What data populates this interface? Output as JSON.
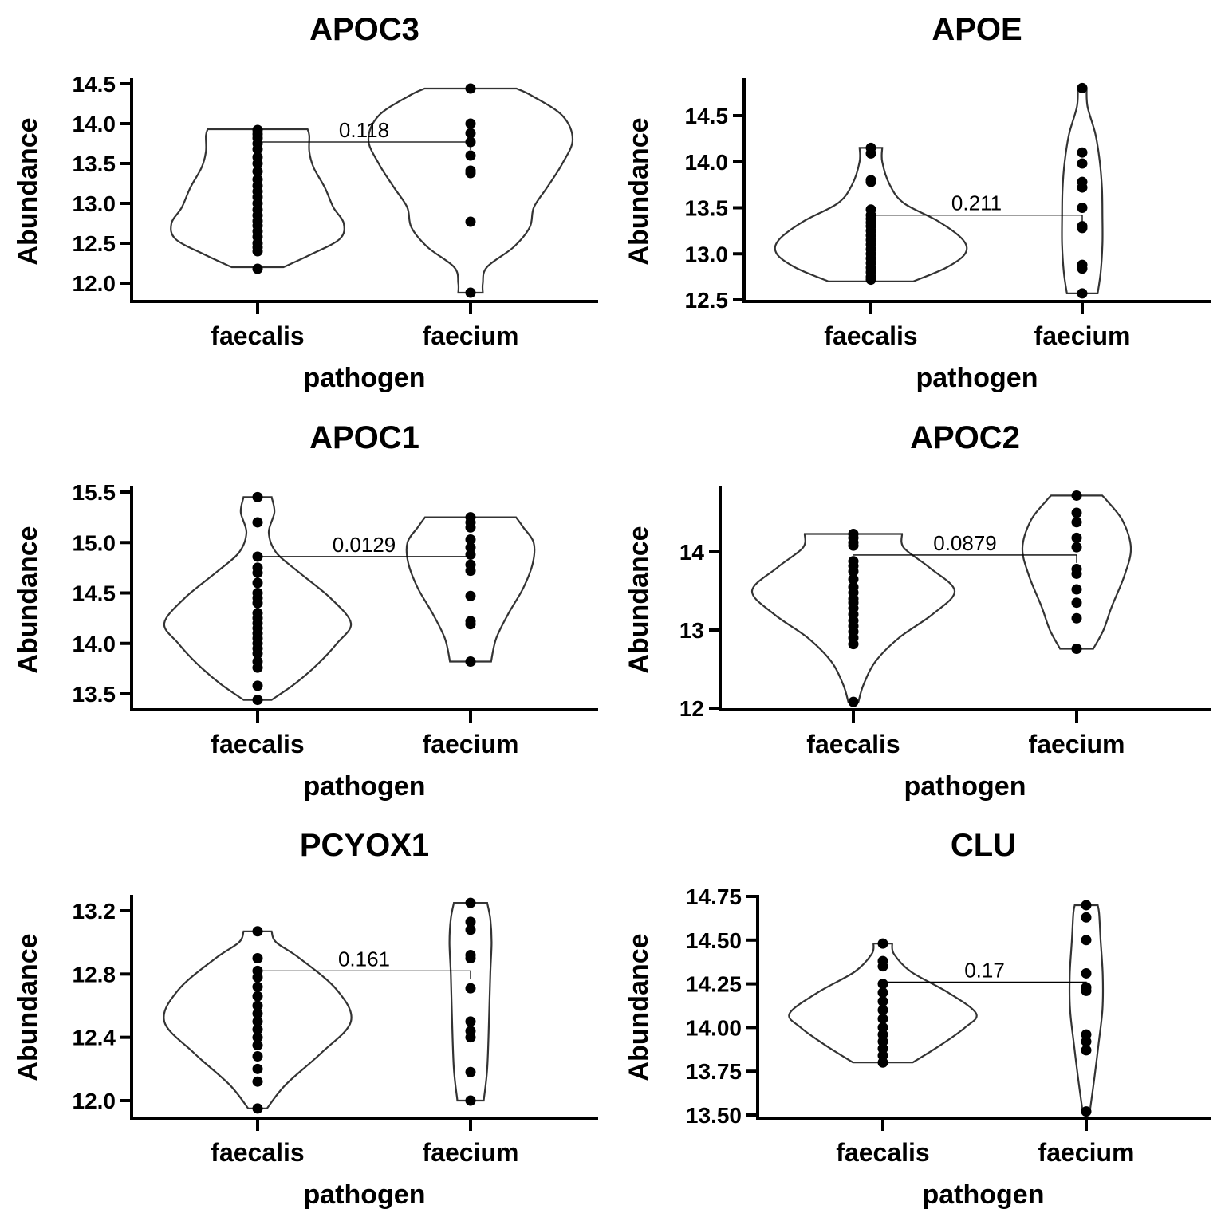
{
  "chart_data": [
    {
      "type": "violin",
      "title": "APOC3",
      "xlabel": "pathogen",
      "ylabel": "Abundance",
      "categories": [
        "faecalis",
        "faecium"
      ],
      "ylim": [
        11.8,
        14.55
      ],
      "yticks": [
        "12.0",
        "12.5",
        "13.0",
        "13.5",
        "14.0",
        "14.5"
      ],
      "pvalue": "0.118",
      "bracket_y": 13.77,
      "series": [
        {
          "values": [
            13.92,
            13.87,
            13.82,
            13.75,
            13.68,
            13.58,
            13.5,
            13.4,
            13.3,
            13.22,
            13.15,
            13.08,
            13.0,
            12.92,
            12.85,
            12.78,
            12.72,
            12.65,
            12.58,
            12.5,
            12.45,
            12.4,
            12.18
          ],
          "violin": [
            [
              12.2,
              0.3
            ],
            [
              12.35,
              0.6
            ],
            [
              12.55,
              0.95
            ],
            [
              12.75,
              1.0
            ],
            [
              12.95,
              0.88
            ],
            [
              13.2,
              0.78
            ],
            [
              13.45,
              0.65
            ],
            [
              13.65,
              0.6
            ],
            [
              13.85,
              0.6
            ],
            [
              13.93,
              0.58
            ]
          ]
        },
        {
          "values": [
            14.44,
            14.0,
            13.88,
            13.77,
            13.6,
            13.41,
            13.38,
            12.77,
            11.88
          ],
          "violin": [
            [
              11.88,
              0.12
            ],
            [
              12.0,
              0.12
            ],
            [
              12.2,
              0.16
            ],
            [
              12.45,
              0.42
            ],
            [
              12.7,
              0.58
            ],
            [
              12.95,
              0.62
            ],
            [
              13.2,
              0.75
            ],
            [
              13.5,
              0.9
            ],
            [
              13.8,
              1.0
            ],
            [
              14.1,
              0.9
            ],
            [
              14.35,
              0.6
            ],
            [
              14.44,
              0.45
            ]
          ]
        }
      ]
    },
    {
      "type": "violin",
      "title": "APOE",
      "xlabel": "pathogen",
      "ylabel": "Abundance",
      "categories": [
        "faecalis",
        "faecium"
      ],
      "ylim": [
        12.45,
        14.9
      ],
      "yticks": [
        "12.5",
        "13.0",
        "13.5",
        "14.0",
        "14.5"
      ],
      "pvalue": "0.211",
      "bracket_y": 13.42,
      "series": [
        {
          "values": [
            14.15,
            14.09,
            13.8,
            13.78,
            13.48,
            13.42,
            13.38,
            13.34,
            13.3,
            13.25,
            13.2,
            13.15,
            13.1,
            13.05,
            13.0,
            12.95,
            12.9,
            12.85,
            12.8,
            12.75,
            12.72
          ],
          "violin": [
            [
              12.7,
              0.45
            ],
            [
              12.85,
              0.8
            ],
            [
              13.0,
              1.0
            ],
            [
              13.15,
              0.98
            ],
            [
              13.35,
              0.72
            ],
            [
              13.55,
              0.35
            ],
            [
              13.75,
              0.2
            ],
            [
              14.0,
              0.12
            ],
            [
              14.15,
              0.12
            ]
          ]
        },
        {
          "values": [
            14.8,
            14.1,
            13.98,
            13.78,
            13.72,
            13.5,
            13.3,
            13.28,
            12.88,
            12.84,
            12.57
          ],
          "violin": [
            [
              12.57,
              0.35
            ],
            [
              12.8,
              0.42
            ],
            [
              13.1,
              0.46
            ],
            [
              13.4,
              0.46
            ],
            [
              13.7,
              0.45
            ],
            [
              14.0,
              0.4
            ],
            [
              14.3,
              0.3
            ],
            [
              14.6,
              0.12
            ],
            [
              14.8,
              0.1
            ]
          ]
        }
      ]
    },
    {
      "type": "violin",
      "title": "APOC1",
      "xlabel": "pathogen",
      "ylabel": "Abundance",
      "categories": [
        "faecalis",
        "faecium"
      ],
      "ylim": [
        13.35,
        15.55
      ],
      "yticks": [
        "13.5",
        "14.0",
        "14.5",
        "15.0",
        "15.5"
      ],
      "pvalue": "0.0129",
      "bracket_y": 14.86,
      "series": [
        {
          "values": [
            15.45,
            15.2,
            14.86,
            14.75,
            14.7,
            14.6,
            14.5,
            14.45,
            14.4,
            14.3,
            14.25,
            14.2,
            14.15,
            14.1,
            14.05,
            14.0,
            13.95,
            13.9,
            13.82,
            13.76,
            13.58,
            13.44
          ],
          "violin": [
            [
              13.44,
              0.15
            ],
            [
              13.6,
              0.4
            ],
            [
              13.8,
              0.65
            ],
            [
              14.0,
              0.85
            ],
            [
              14.2,
              1.0
            ],
            [
              14.45,
              0.78
            ],
            [
              14.7,
              0.45
            ],
            [
              14.9,
              0.2
            ],
            [
              15.1,
              0.12
            ],
            [
              15.3,
              0.18
            ],
            [
              15.45,
              0.15
            ]
          ]
        },
        {
          "values": [
            15.25,
            15.2,
            15.15,
            15.03,
            14.95,
            14.88,
            14.78,
            14.72,
            14.47,
            14.22,
            14.19,
            13.82
          ],
          "violin": [
            [
              13.82,
              0.28
            ],
            [
              14.05,
              0.35
            ],
            [
              14.3,
              0.52
            ],
            [
              14.55,
              0.72
            ],
            [
              14.8,
              0.85
            ],
            [
              15.0,
              0.86
            ],
            [
              15.15,
              0.72
            ],
            [
              15.25,
              0.62
            ]
          ]
        }
      ]
    },
    {
      "type": "violin",
      "title": "APOC2",
      "xlabel": "pathogen",
      "ylabel": "Abundance",
      "categories": [
        "faecalis",
        "faecium"
      ],
      "ylim": [
        11.98,
        14.85
      ],
      "yticks": [
        "12",
        "13",
        "14"
      ],
      "pvalue": "0.0879",
      "bracket_y": 13.96,
      "series": [
        {
          "values": [
            14.23,
            14.18,
            14.12,
            14.08,
            13.88,
            13.82,
            13.75,
            13.65,
            13.55,
            13.48,
            13.4,
            13.35,
            13.28,
            13.2,
            13.12,
            13.05,
            12.98,
            12.9,
            12.82,
            12.08
          ],
          "violin": [
            [
              12.08,
              0.05
            ],
            [
              12.3,
              0.1
            ],
            [
              12.6,
              0.22
            ],
            [
              12.9,
              0.45
            ],
            [
              13.2,
              0.78
            ],
            [
              13.5,
              1.0
            ],
            [
              13.8,
              0.75
            ],
            [
              14.05,
              0.5
            ],
            [
              14.23,
              0.48
            ]
          ]
        },
        {
          "values": [
            14.72,
            14.5,
            14.38,
            14.18,
            14.06,
            13.78,
            13.72,
            13.52,
            13.35,
            13.15,
            12.76
          ],
          "violin": [
            [
              12.76,
              0.26
            ],
            [
              13.0,
              0.42
            ],
            [
              13.3,
              0.55
            ],
            [
              13.7,
              0.75
            ],
            [
              14.05,
              0.85
            ],
            [
              14.4,
              0.72
            ],
            [
              14.65,
              0.48
            ],
            [
              14.72,
              0.4
            ]
          ]
        }
      ]
    },
    {
      "type": "violin",
      "title": "PCYOX1",
      "xlabel": "pathogen",
      "ylabel": "Abundance",
      "categories": [
        "faecalis",
        "faecium"
      ],
      "ylim": [
        11.9,
        13.3
      ],
      "yticks": [
        "12.0",
        "12.4",
        "12.8",
        "13.2"
      ],
      "pvalue": "0.161",
      "bracket_y": 12.82,
      "series": [
        {
          "values": [
            13.07,
            12.9,
            12.82,
            12.78,
            12.72,
            12.66,
            12.6,
            12.55,
            12.5,
            12.45,
            12.4,
            12.35,
            12.28,
            12.2,
            12.12,
            11.95
          ],
          "violin": [
            [
              11.95,
              0.1
            ],
            [
              12.1,
              0.3
            ],
            [
              12.3,
              0.68
            ],
            [
              12.5,
              1.0
            ],
            [
              12.7,
              0.85
            ],
            [
              12.9,
              0.45
            ],
            [
              13.0,
              0.2
            ],
            [
              13.07,
              0.15
            ]
          ]
        },
        {
          "values": [
            13.25,
            13.13,
            13.08,
            12.92,
            12.9,
            12.71,
            12.5,
            12.44,
            12.4,
            12.18,
            12.0
          ],
          "violin": [
            [
              12.0,
              0.3
            ],
            [
              12.2,
              0.38
            ],
            [
              12.5,
              0.42
            ],
            [
              12.8,
              0.45
            ],
            [
              13.0,
              0.48
            ],
            [
              13.15,
              0.45
            ],
            [
              13.25,
              0.38
            ]
          ]
        }
      ]
    },
    {
      "type": "violin",
      "title": "CLU",
      "xlabel": "pathogen",
      "ylabel": "Abundance",
      "categories": [
        "faecalis",
        "faecium"
      ],
      "ylim": [
        13.48,
        14.77
      ],
      "yticks": [
        "13.50",
        "13.75",
        "14.00",
        "14.25",
        "14.50",
        "14.75"
      ],
      "pvalue": "0.17",
      "bracket_y": 14.26,
      "series": [
        {
          "values": [
            14.48,
            14.38,
            14.35,
            14.25,
            14.2,
            14.15,
            14.1,
            14.05,
            14.0,
            13.96,
            13.92,
            13.88,
            13.84,
            13.8
          ],
          "violin": [
            [
              13.8,
              0.32
            ],
            [
              13.9,
              0.62
            ],
            [
              14.0,
              0.88
            ],
            [
              14.08,
              1.0
            ],
            [
              14.2,
              0.7
            ],
            [
              14.32,
              0.3
            ],
            [
              14.42,
              0.12
            ],
            [
              14.48,
              0.1
            ]
          ]
        },
        {
          "values": [
            14.7,
            14.63,
            14.5,
            14.31,
            14.23,
            14.21,
            13.96,
            13.92,
            13.87,
            13.52
          ],
          "violin": [
            [
              13.52,
              0.1
            ],
            [
              13.7,
              0.22
            ],
            [
              13.9,
              0.34
            ],
            [
              14.1,
              0.45
            ],
            [
              14.3,
              0.46
            ],
            [
              14.5,
              0.4
            ],
            [
              14.65,
              0.36
            ],
            [
              14.7,
              0.32
            ]
          ]
        }
      ]
    }
  ]
}
